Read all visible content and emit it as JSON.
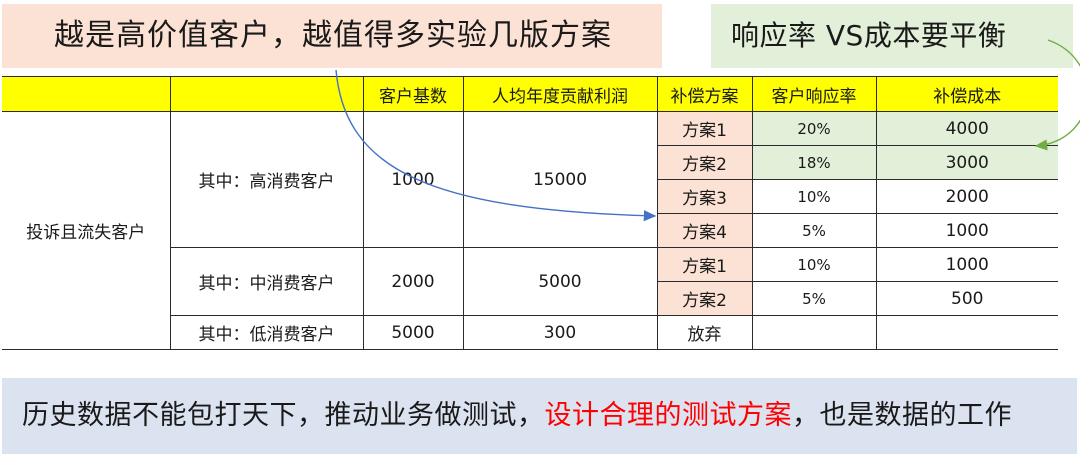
{
  "callouts": {
    "left": "越是高价值客户，越值得多实验几版方案",
    "right": "响应率 VS成本要平衡"
  },
  "table": {
    "headers": [
      "",
      "",
      "客户基数",
      "人均年度贡献利润",
      "补偿方案",
      "客户响应率",
      "补偿成本"
    ],
    "group_label": "投诉且流失客户",
    "segments": [
      {
        "name": "其中：高消费客户",
        "base": "1000",
        "profit": "15000",
        "plans": [
          {
            "plan": "方案1",
            "rate": "20%",
            "cost": "4000"
          },
          {
            "plan": "方案2",
            "rate": "18%",
            "cost": "3000"
          },
          {
            "plan": "方案3",
            "rate": "10%",
            "cost": "2000"
          },
          {
            "plan": "方案4",
            "rate": "5%",
            "cost": "1000"
          }
        ]
      },
      {
        "name": "其中：中消费客户",
        "base": "2000",
        "profit": "5000",
        "plans": [
          {
            "plan": "方案1",
            "rate": "10%",
            "cost": "1000"
          },
          {
            "plan": "方案2",
            "rate": "5%",
            "cost": "500"
          }
        ]
      },
      {
        "name": "其中：低消费客户",
        "base": "5000",
        "profit": "300",
        "plans": [
          {
            "plan": "放弃",
            "rate": "",
            "cost": ""
          }
        ]
      }
    ]
  },
  "bottom": {
    "before": "历史数据不能包打天下，推动业务做测试，",
    "highlight": "设计合理的测试方案",
    "after": "，也是数据的工作"
  },
  "colors": {
    "header_bg": "#ffff00",
    "peach": "#fbe2d4",
    "green": "#e2efd9",
    "blue_bar": "#dce3f0",
    "red_text": "#ff0000",
    "arrow_blue": "#4472c4",
    "arrow_green": "#70ad47"
  }
}
